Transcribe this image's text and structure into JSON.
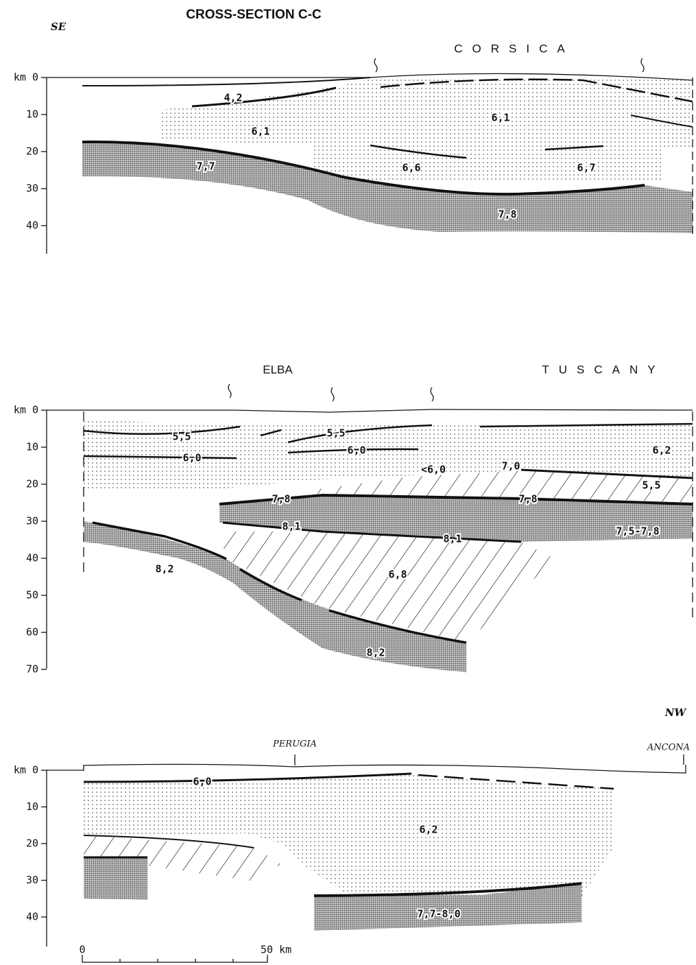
{
  "header": {
    "title": "CROSS-SECTION C-C",
    "left_direction": "SE",
    "right_direction": "NW"
  },
  "panels": [
    {
      "places": [
        "CORSICA"
      ],
      "depth_labels": [
        "km 0",
        "10",
        "20",
        "30",
        "40"
      ],
      "velocities": [
        "4,2",
        "6,1",
        "6,1",
        "7,7",
        "6,6",
        "6,7",
        "7,8"
      ]
    },
    {
      "places": [
        "ELBA",
        "TUSCANY"
      ],
      "depth_labels": [
        "km 0",
        "10",
        "20",
        "30",
        "40",
        "50",
        "60",
        "70"
      ],
      "velocities": [
        "5,5",
        "5,5",
        "6,0",
        "6,0",
        "<6,0",
        "7,0",
        "6,2",
        "5,5",
        "7,8",
        "7,8",
        "8,1",
        "8,1",
        "7,5-7,8",
        "8,2",
        "6,8",
        "8,2"
      ]
    },
    {
      "places": [
        "PERUGIA",
        "ANCONA"
      ],
      "depth_labels": [
        "km 0",
        "10",
        "20",
        "30",
        "40"
      ],
      "velocities": [
        "6,0",
        "6,2",
        "7,7-8,0"
      ]
    }
  ],
  "scale_bar": {
    "start": "0",
    "end": "50 km"
  }
}
